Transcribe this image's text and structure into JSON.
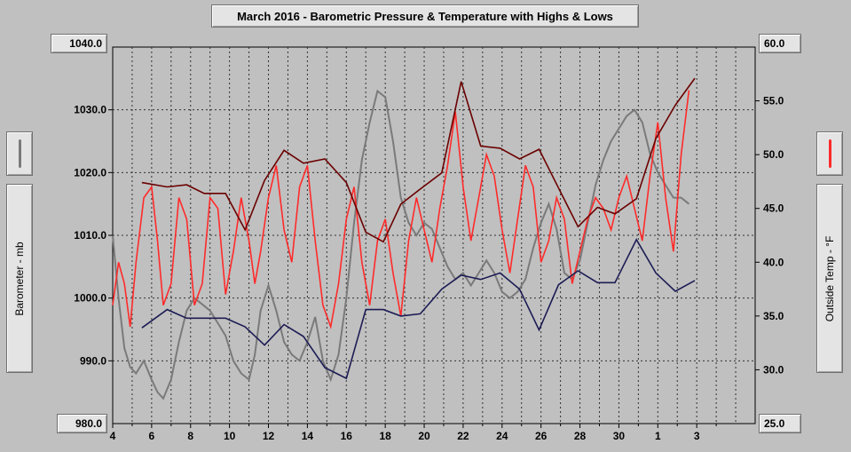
{
  "chart_data": {
    "type": "line",
    "title": "March 2016 - Barometric Pressure & Temperature with Highs & Lows",
    "x_ticks": [
      "4",
      "6",
      "8",
      "10",
      "12",
      "14",
      "16",
      "18",
      "20",
      "22",
      "24",
      "26",
      "28",
      "30",
      "1",
      "3"
    ],
    "y_left": {
      "label": "Barometer - mb",
      "min": 980.0,
      "max": 1040.0,
      "tick_step": 10,
      "top_label": "1040.0",
      "bottom_label": "980.0",
      "tick_labels": [
        "1030.0",
        "1020.0",
        "1010.0",
        "1000.0",
        "990.0"
      ]
    },
    "y_right": {
      "label": "Outside Temp - °F",
      "min": 25.0,
      "max": 60.0,
      "tick_step": 5,
      "top_label": "60.0",
      "bottom_label": "25.0",
      "tick_labels": [
        "55.0",
        "50.0",
        "45.0",
        "40.0",
        "35.0",
        "30.0"
      ]
    },
    "grid": true,
    "colors": {
      "temperature": "#ff2a2a",
      "barometer": "#7a7a7a",
      "temp_high": "#6b0000",
      "temp_low": "#1c1c55"
    },
    "series": [
      {
        "axis": "left",
        "x": [
          3.0,
          3.3,
          3.6,
          3.9,
          4.2,
          4.6,
          5.0,
          5.3,
          5.6,
          6.0,
          6.4,
          6.8,
          7.2,
          7.6,
          8.0,
          8.4,
          8.8,
          9.2,
          9.6,
          10.0,
          10.3,
          10.6,
          11.0,
          11.4,
          11.8,
          12.2,
          12.6,
          13.0,
          13.4,
          13.8,
          14.2,
          14.6,
          15.0,
          15.4,
          15.8,
          16.2,
          16.6,
          17.0,
          17.4,
          17.8,
          18.2,
          18.6,
          19.0,
          19.4,
          19.8,
          20.2,
          20.6,
          21.0,
          21.4,
          21.8,
          22.2,
          22.6,
          23.0,
          23.4,
          23.8,
          24.2,
          24.6,
          25.0,
          25.4,
          25.8,
          26.2,
          26.6,
          27.0,
          27.4,
          27.8,
          28.2,
          28.6,
          29.0,
          29.4,
          29.8,
          30.2,
          30.6,
          31.0,
          31.4,
          31.8,
          32.2,
          32.6
        ],
        "values": [
          1010,
          1000,
          992,
          989,
          988,
          990,
          987,
          985,
          984,
          987,
          993,
          998,
          1000,
          999,
          998,
          996,
          994,
          990,
          988,
          987,
          991,
          998,
          1002,
          998,
          993,
          991,
          990,
          993,
          997,
          990,
          987,
          991,
          1000,
          1012,
          1022,
          1028,
          1033,
          1032,
          1025,
          1016,
          1012,
          1010,
          1012,
          1011,
          1008,
          1005,
          1003,
          1004,
          1002,
          1004,
          1006,
          1004,
          1001,
          1000,
          1001,
          1003,
          1008,
          1012,
          1015,
          1011,
          1004,
          1003,
          1006,
          1012,
          1018,
          1022,
          1025,
          1027,
          1029,
          1030,
          1028,
          1023,
          1020,
          1018,
          1016,
          1016,
          1015
        ]
      },
      {
        "axis": "right",
        "x": [
          3.0,
          3.3,
          3.6,
          3.9,
          4.2,
          4.6,
          5.0,
          5.3,
          5.6,
          6.0,
          6.4,
          6.8,
          7.2,
          7.6,
          8.0,
          8.4,
          8.8,
          9.2,
          9.6,
          10.0,
          10.3,
          10.6,
          11.0,
          11.4,
          11.8,
          12.2,
          12.6,
          13.0,
          13.4,
          13.8,
          14.2,
          14.6,
          15.0,
          15.4,
          15.8,
          16.2,
          16.6,
          17.0,
          17.4,
          17.8,
          18.2,
          18.6,
          19.0,
          19.4,
          19.8,
          20.2,
          20.6,
          21.0,
          21.4,
          21.8,
          22.2,
          22.6,
          23.0,
          23.4,
          23.8,
          24.2,
          24.6,
          25.0,
          25.4,
          25.8,
          26.2,
          26.6,
          27.0,
          27.4,
          27.8,
          28.2,
          28.6,
          29.0,
          29.4,
          29.8,
          30.2,
          30.6,
          31.0,
          31.4,
          31.8,
          32.2,
          32.6
        ],
        "values": [
          36,
          40,
          38,
          34,
          40,
          46,
          47,
          42,
          36,
          38,
          46,
          44,
          36,
          38,
          46,
          45,
          37,
          41,
          46,
          42,
          38,
          41,
          46,
          49,
          43,
          40,
          47,
          49,
          42,
          36,
          34,
          38,
          44,
          47,
          40,
          36,
          42,
          44,
          39,
          35,
          42,
          46,
          43,
          40,
          45,
          49,
          54,
          47,
          42,
          46,
          50,
          48,
          43,
          39,
          44,
          49,
          47,
          40,
          42,
          46,
          44,
          38,
          41,
          44,
          46,
          45,
          43,
          46,
          48,
          45,
          42,
          48,
          53,
          46,
          41,
          50,
          56
        ]
      },
      {
        "axis": "right",
        "x": [
          4.5,
          5.8,
          6.8,
          7.7,
          8.8,
          9.8,
          10.8,
          11.8,
          12.8,
          13.9,
          15.0,
          16.0,
          16.9,
          17.8,
          18.8,
          19.9,
          20.9,
          21.9,
          22.9,
          23.9,
          24.9,
          25.9,
          26.9,
          27.9,
          28.8,
          29.9,
          30.9,
          31.9,
          32.9
        ],
        "values": [
          47.4,
          47.0,
          47.2,
          46.4,
          46.4,
          43.0,
          47.6,
          50.4,
          49.2,
          49.6,
          47.4,
          42.8,
          41.9,
          45.4,
          46.8,
          48.3,
          56.8,
          50.8,
          50.6,
          49.6,
          50.5,
          46.9,
          43.3,
          45.1,
          44.5,
          45.9,
          51.5,
          54.6,
          57.1
        ]
      },
      {
        "axis": "right",
        "x": [
          4.5,
          5.8,
          6.8,
          7.7,
          8.8,
          9.8,
          10.8,
          11.8,
          12.8,
          13.9,
          15.0,
          16.0,
          16.9,
          17.8,
          18.8,
          19.9,
          20.9,
          21.9,
          22.9,
          23.9,
          24.9,
          25.9,
          26.9,
          27.9,
          28.8,
          29.9,
          30.9,
          31.9,
          32.9
        ],
        "values": [
          33.9,
          35.6,
          34.8,
          34.8,
          34.8,
          34.0,
          32.3,
          34.2,
          33.1,
          30.2,
          29.2,
          35.6,
          35.6,
          35.0,
          35.2,
          37.5,
          38.8,
          38.4,
          39.0,
          37.5,
          33.7,
          37.9,
          39.2,
          38.1,
          38.1,
          42.1,
          39.0,
          37.3,
          38.3
        ]
      }
    ]
  }
}
